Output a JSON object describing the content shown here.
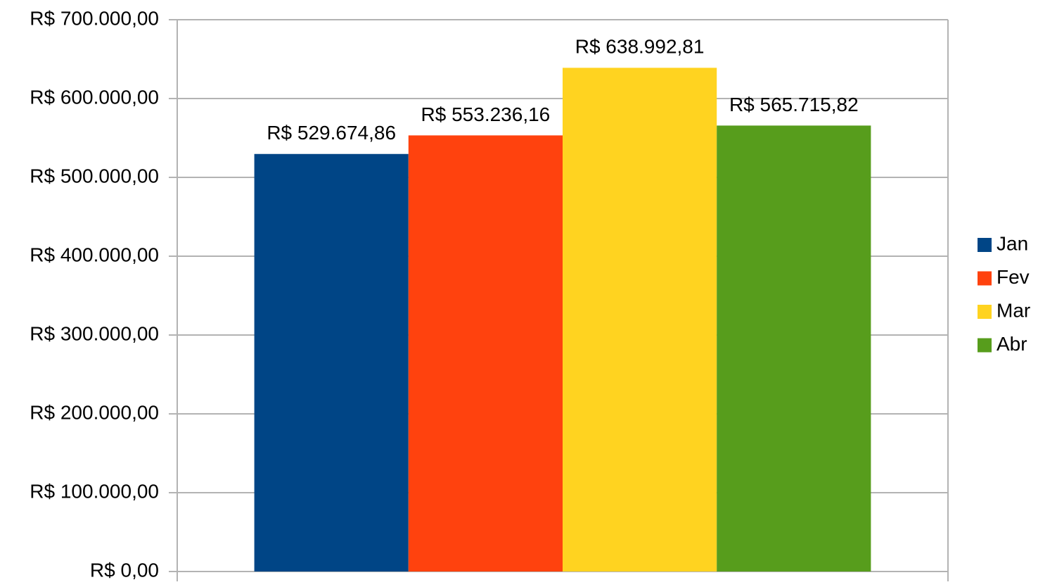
{
  "chart_data": {
    "type": "bar",
    "categories": [
      null
    ],
    "series": [
      {
        "name": "Jan",
        "color": "#004586",
        "values": [
          529674.86
        ],
        "value_labels": [
          "R$ 529.674,86"
        ]
      },
      {
        "name": "Fev",
        "color": "#ff420e",
        "values": [
          553236.16
        ],
        "value_labels": [
          "R$ 553.236,16"
        ]
      },
      {
        "name": "Mar",
        "color": "#ffd320",
        "values": [
          638992.81
        ],
        "value_labels": [
          "R$ 638.992,81"
        ]
      },
      {
        "name": "Abr",
        "color": "#579d1c",
        "values": [
          565715.82
        ],
        "value_labels": [
          "R$ 565.715,82"
        ]
      }
    ],
    "ylim": [
      0,
      700000
    ],
    "yticks": [
      {
        "value": 0,
        "label": "R$ 0,00"
      },
      {
        "value": 100000,
        "label": "R$ 100.000,00"
      },
      {
        "value": 200000,
        "label": "R$ 200.000,00"
      },
      {
        "value": 300000,
        "label": "R$ 300.000,00"
      },
      {
        "value": 400000,
        "label": "R$ 400.000,00"
      },
      {
        "value": 500000,
        "label": "R$ 500.000,00"
      },
      {
        "value": 600000,
        "label": "R$ 600.000,00"
      },
      {
        "value": 700000,
        "label": "R$ 700.000,00"
      }
    ],
    "grid": true,
    "legend": "right"
  }
}
